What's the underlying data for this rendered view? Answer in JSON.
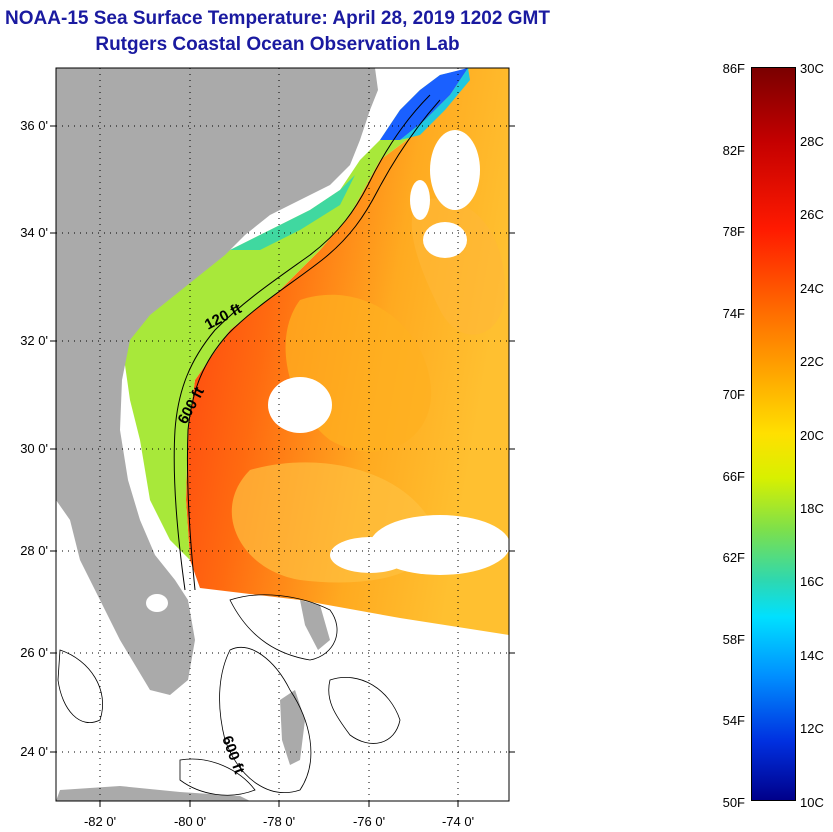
{
  "title": {
    "line1": "NOAA-15 Sea Surface Temperature:  April 28, 2019 1202 GMT",
    "line2": "Rutgers Coastal Ocean Observation Lab"
  },
  "map": {
    "latitude_labels": [
      "36 0'",
      "34 0'",
      "32 0'",
      "30 0'",
      "28 0'",
      "26 0'",
      "24 0'"
    ],
    "longitude_labels": [
      "-82 0'",
      "-80 0'",
      "-78 0'",
      "-76 0'",
      "-74 0'"
    ],
    "contour_labels": [
      "120 ft",
      "600 ft",
      "600 ft"
    ]
  },
  "colorbar": {
    "fahrenheit_labels": [
      "86F",
      "82F",
      "78F",
      "74F",
      "70F",
      "66F",
      "62F",
      "58F",
      "54F",
      "50F"
    ],
    "celsius_labels": [
      "30C",
      "28C",
      "26C",
      "24C",
      "22C",
      "20C",
      "18C",
      "16C",
      "14C",
      "12C",
      "10C"
    ],
    "colors": {
      "hot": "#7a0000",
      "warm": "#ff6a00",
      "mid": "#ffe000",
      "cool": "#2ed8b0",
      "cold": "#00008a",
      "land": "#aaaaaa"
    }
  }
}
